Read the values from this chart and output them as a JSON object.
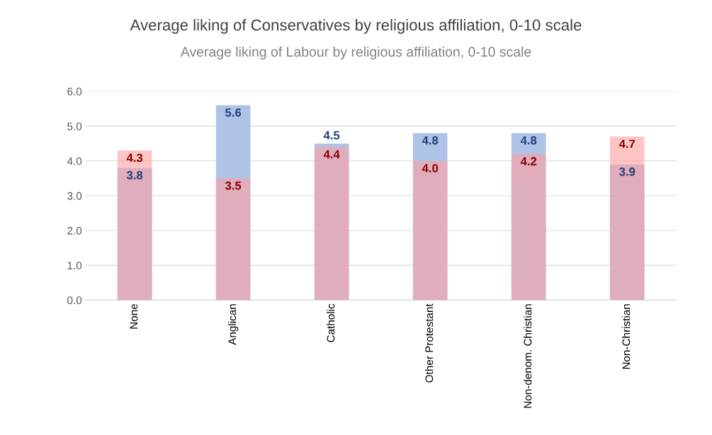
{
  "chart_data": {
    "type": "bar",
    "title": "Average liking of Conservatives by religious affiliation, 0-10 scale",
    "subtitle": "Average liking of Labour by religious affiliation, 0-10 scale",
    "categories": [
      "None",
      "Anglican",
      "Catholic",
      "Other Protestant",
      "Non-denom. Christian",
      "Non-Christian"
    ],
    "series": [
      {
        "color": "#aec3e6",
        "values": [
          3.8,
          5.6,
          4.5,
          4.8,
          4.8,
          3.9
        ],
        "value_labels": [
          "3.8",
          "5.6",
          "4.5",
          "4.8",
          "4.8",
          "3.9"
        ]
      },
      {
        "color": "#ff9f9f",
        "values": [
          4.3,
          3.5,
          4.4,
          4.0,
          4.2,
          4.7
        ],
        "value_labels": [
          "4.3",
          "3.5",
          "4.4",
          "4.0",
          "4.2",
          "4.7"
        ]
      }
    ],
    "ylim": [
      0,
      6
    ],
    "yticks": [
      {
        "value": 0,
        "label": "0.0"
      },
      {
        "value": 1,
        "label": "1.0"
      },
      {
        "value": 2,
        "label": "2.0"
      },
      {
        "value": 3,
        "label": "3.0"
      },
      {
        "value": 4,
        "label": "4.0"
      },
      {
        "value": 5,
        "label": "5.0"
      },
      {
        "value": 6,
        "label": "6.0"
      }
    ],
    "grid": "y"
  }
}
